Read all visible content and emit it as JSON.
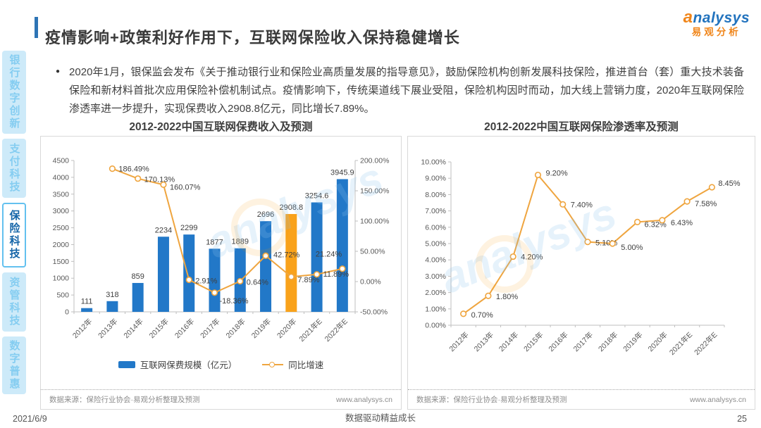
{
  "header": {
    "title": "疫情影响+政策利好作用下，互联网保险收入保持稳健增长",
    "logo_a": "a",
    "logo_rest": "nalysys",
    "logo_cn": "易观分析"
  },
  "sidebar": {
    "items": [
      {
        "label": "银行数字创新",
        "active": false
      },
      {
        "label": "支付科技",
        "active": false
      },
      {
        "label": "保险科技",
        "active": true
      },
      {
        "label": "资管科技",
        "active": false
      },
      {
        "label": "数字普惠",
        "active": false
      }
    ]
  },
  "bullet": {
    "dot": "●",
    "text": "2020年1月，银保监会发布《关于推动银行业和保险业高质量发展的指导意见》，鼓励保险机构创新发展科技保险，推进首台（套）重大技术装备保险和新材料首批次应用保险补偿机制试点。疫情影响下，传统渠道线下展业受阻，保险机构因时而动，加大线上营销力度，2020年互联网保险渗透率进一步提升，实现保费收入2908.8亿元，同比增长7.89%。"
  },
  "panels": [
    {
      "title": "2012-2022中国互联网保费收入及预测",
      "source": "数据来源：保险行业协会·易观分析整理及预测",
      "site": "www.analysys.cn"
    },
    {
      "title": "2012-2022中国互联网保险渗透率及预测",
      "source": "数据来源：保险行业协会·易观分析整理及预测",
      "site": "www.analysys.cn"
    }
  ],
  "watermark": "analysys",
  "footer": {
    "date": "2021/6/9",
    "motto": "数据驱动精益成长",
    "page": "25"
  },
  "chart_data": [
    {
      "type": "bar",
      "title": "2012-2022中国互联网保费收入及预测",
      "categories": [
        "2012年",
        "2013年",
        "2014年",
        "2015年",
        "2016年",
        "2017年",
        "2018年",
        "2019年",
        "2020年",
        "2021年E",
        "2022年E"
      ],
      "series": [
        {
          "name": "互联网保费规模（亿元）",
          "type": "bar",
          "axis": "left",
          "color": "#2278c8",
          "highlight": {
            "index": 8,
            "color": "#f9a21b"
          },
          "values": [
            111,
            318,
            859,
            2234,
            2299,
            1877,
            1889,
            2696,
            2908.8,
            3254.6,
            3945.9
          ],
          "labels": [
            "111",
            "318",
            "859",
            "2234",
            "2299",
            "1877",
            "1889",
            "2696",
            "2908.8",
            "3254.6",
            "3945.9"
          ]
        },
        {
          "name": "同比增速",
          "type": "line",
          "axis": "right",
          "color": "#efa53f",
          "values": [
            null,
            186.49,
            170.13,
            160.07,
            2.91,
            -18.36,
            0.64,
            42.72,
            7.89,
            11.89,
            21.24
          ],
          "labels": [
            null,
            "186.49%",
            "170.13%",
            "160.07%",
            "2.91%",
            "-18.36%",
            "0.64%",
            "42.72%",
            "7.89%",
            "11.89%",
            "21.24%"
          ],
          "label_offsets": [
            null,
            [
              9,
              4
            ],
            [
              9,
              5
            ],
            [
              9,
              7
            ],
            [
              9,
              5
            ],
            [
              7,
              15
            ],
            [
              9,
              5
            ],
            [
              11,
              2
            ],
            [
              9,
              8
            ],
            [
              9,
              3
            ],
            [
              -38,
              -17
            ]
          ]
        }
      ],
      "left_axis": {
        "min": 0,
        "max": 4500,
        "step": 500
      },
      "right_axis": {
        "min": -50,
        "max": 200,
        "step": 50
      },
      "left_ticks": [
        "0",
        "500",
        "1000",
        "1500",
        "2000",
        "2500",
        "3000",
        "3500",
        "4000",
        "4500"
      ],
      "right_ticks": [
        "-50.00%",
        "0.00%",
        "50.00%",
        "100.00%",
        "150.00%",
        "200.00%"
      ],
      "legend_position": "bottom",
      "grid": false
    },
    {
      "type": "line",
      "title": "2012-2022中国互联网保险渗透率及预测",
      "categories": [
        "2012年",
        "2013年",
        "2014年",
        "2015年",
        "2016年",
        "2017年",
        "2018年",
        "2019年",
        "2020年",
        "2021年E",
        "2022年E"
      ],
      "series": [
        {
          "name": "互联网保险渗透率",
          "type": "line",
          "axis": "left",
          "color": "#efa53f",
          "values": [
            0.7,
            1.8,
            4.2,
            9.2,
            7.4,
            5.1,
            5.0,
            6.32,
            6.43,
            7.58,
            8.45
          ],
          "labels": [
            "0.70%",
            "1.80%",
            "4.20%",
            "9.20%",
            "7.40%",
            "5.10%",
            "5.00%",
            "6.32%",
            "6.43%",
            "7.58%",
            "8.45%"
          ],
          "label_offsets": [
            [
              11,
              5
            ],
            [
              11,
              5
            ],
            [
              11,
              4
            ],
            [
              11,
              1
            ],
            [
              11,
              4
            ],
            [
              11,
              5
            ],
            [
              12,
              9
            ],
            [
              10,
              7
            ],
            [
              12,
              7
            ],
            [
              11,
              7
            ],
            [
              9,
              -2
            ]
          ]
        }
      ],
      "left_axis": {
        "min": 0,
        "max": 10,
        "step": 1
      },
      "left_ticks": [
        "0.00%",
        "1.00%",
        "2.00%",
        "3.00%",
        "4.00%",
        "5.00%",
        "6.00%",
        "7.00%",
        "8.00%",
        "9.00%",
        "10.00%"
      ],
      "legend_position": "none",
      "grid": false
    }
  ]
}
